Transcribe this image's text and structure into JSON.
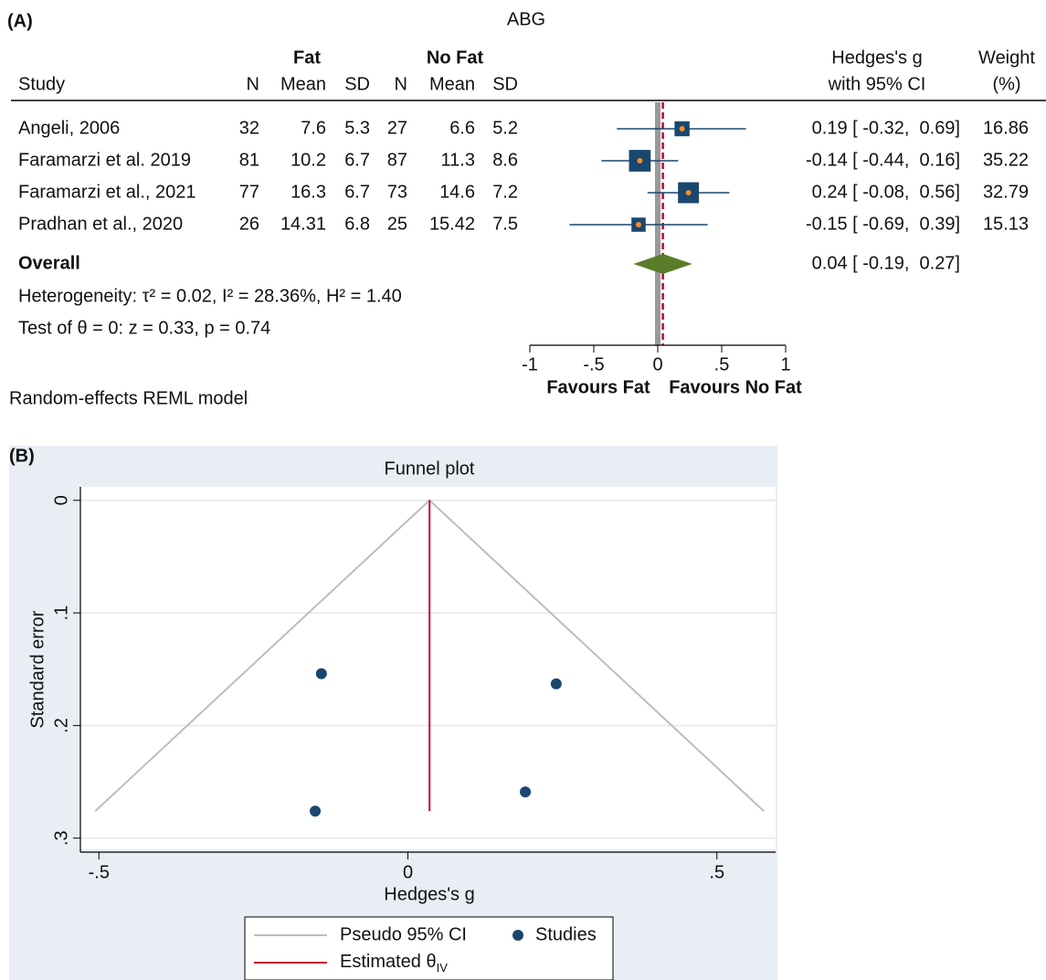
{
  "chart_data": [
    {
      "type": "forest",
      "panel_label": "(A)",
      "title": "ABG",
      "group_headers": [
        "Fat",
        "No Fat"
      ],
      "columns": [
        "Study",
        "N",
        "Mean",
        "SD",
        "N",
        "Mean",
        "SD"
      ],
      "effect_header": [
        "Hedges's g",
        "with 95% CI"
      ],
      "weight_header": [
        "Weight",
        "(%)"
      ],
      "studies": [
        {
          "name": "Angeli, 2006",
          "fat": [
            32,
            7.6,
            5.3
          ],
          "no_fat": [
            27,
            6.6,
            5.2
          ],
          "g": 0.19,
          "lo": -0.32,
          "hi": 0.69,
          "ci_label": "0.19 [ -0.32,  0.69]",
          "weight": 16.86
        },
        {
          "name": "Faramarzi et al. 2019",
          "fat": [
            81,
            10.2,
            6.7
          ],
          "no_fat": [
            87,
            11.3,
            8.6
          ],
          "g": -0.14,
          "lo": -0.44,
          "hi": 0.16,
          "ci_label": "-0.14 [ -0.44,  0.16]",
          "weight": 35.22
        },
        {
          "name": "Faramarzi et al., 2021",
          "fat": [
            77,
            16.3,
            6.7
          ],
          "no_fat": [
            73,
            14.6,
            7.2
          ],
          "g": 0.24,
          "lo": -0.08,
          "hi": 0.56,
          "ci_label": "0.24 [ -0.08,  0.56]",
          "weight": 32.79
        },
        {
          "name": "Pradhan et al., 2020",
          "fat": [
            26,
            14.31,
            6.8
          ],
          "no_fat": [
            25,
            15.42,
            7.5
          ],
          "g": -0.15,
          "lo": -0.69,
          "hi": 0.39,
          "ci_label": "-0.15 [ -0.69,  0.39]",
          "weight": 15.13
        }
      ],
      "overall": {
        "name": "Overall",
        "g": 0.04,
        "lo": -0.19,
        "hi": 0.27,
        "ci_label": "0.04 [ -0.19,  0.27]"
      },
      "heterogeneity": "Heterogeneity: τ² = 0.02, I² = 28.36%, H² = 1.40",
      "test": "Test of θ = 0: z = 0.33, p = 0.74",
      "model_note": "Random-effects REML model",
      "xlim": [
        -1,
        1
      ],
      "xticks": [
        -1,
        {
          "value": -0.5,
          "label": "-.5"
        },
        0,
        {
          "value": 0.5,
          "label": ".5"
        },
        1
      ],
      "favours": [
        "Favours Fat",
        "Favours No Fat"
      ],
      "colors": {
        "box": "#1a476f",
        "point": "#f28e2b",
        "diamond": "#5a7d2a",
        "overall_line": "#c10534",
        "null_line": "#999999"
      }
    },
    {
      "type": "funnel",
      "panel_label": "(B)",
      "title": "Funnel plot",
      "xlabel": "Hedges's g",
      "ylabel": "Standard error",
      "x": [
        -0.14,
        0.24,
        0.19,
        -0.15
      ],
      "series": [
        {
          "name": "Studies",
          "color": "#1a476f",
          "values": [
            0.154,
            0.163,
            0.259,
            0.276
          ]
        }
      ],
      "estimate": {
        "name": "Estimated θ",
        "subscript": "IV",
        "value": 0.035,
        "color": "#c10534"
      },
      "pseudo_ci": {
        "name": "Pseudo 95% CI",
        "color": "#bdbdbd"
      },
      "xlim": [
        -0.53,
        0.595
      ],
      "ylim": [
        -0.012,
        0.31
      ],
      "y_reversed": true,
      "xticks": [
        {
          "value": -0.5,
          "label": "-.5"
        },
        0,
        {
          "value": 0.5,
          "label": ".5"
        }
      ],
      "yticks": [
        0,
        {
          "value": 0.1,
          "label": ".1"
        },
        {
          "value": 0.2,
          "label": ".2"
        },
        {
          "value": 0.3,
          "label": ".3"
        }
      ],
      "grid": true,
      "background": "#e8eef4"
    }
  ]
}
